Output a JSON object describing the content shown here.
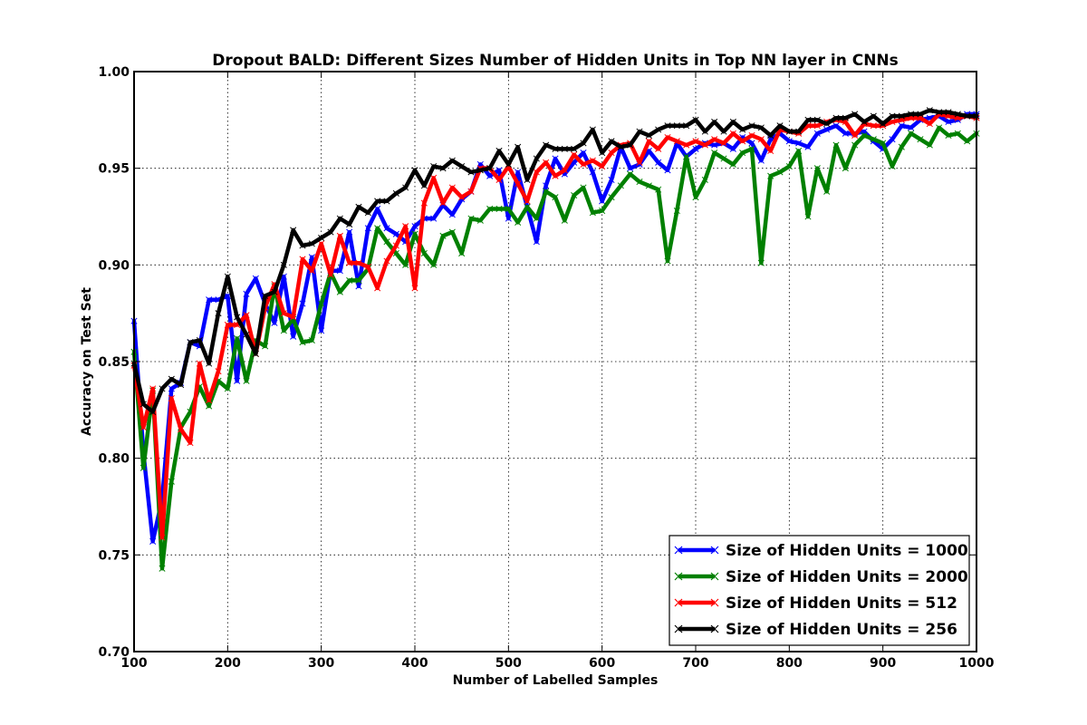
{
  "chart_data": {
    "type": "line",
    "title": "Dropout BALD: Different Sizes Number of Hidden Units in Top NN layer in CNNs",
    "xlabel": "Number of Labelled Samples",
    "ylabel": "Accuracy on Test Set",
    "xlim": [
      100,
      1000
    ],
    "ylim": [
      0.7,
      1.0
    ],
    "xticks": [
      "100",
      "200",
      "300",
      "400",
      "500",
      "600",
      "700",
      "800",
      "900",
      "1000"
    ],
    "yticks": [
      "0.70",
      "0.75",
      "0.80",
      "0.85",
      "0.90",
      "0.95",
      "1.00"
    ],
    "grid": true,
    "legend_position": "lower-right",
    "x": [
      100,
      110,
      120,
      130,
      140,
      150,
      160,
      170,
      180,
      190,
      200,
      210,
      220,
      230,
      240,
      250,
      260,
      270,
      280,
      290,
      300,
      310,
      320,
      330,
      340,
      350,
      360,
      370,
      380,
      390,
      400,
      410,
      420,
      430,
      440,
      450,
      460,
      470,
      480,
      490,
      500,
      510,
      520,
      530,
      540,
      550,
      560,
      570,
      580,
      590,
      600,
      610,
      620,
      630,
      640,
      650,
      660,
      670,
      680,
      690,
      700,
      710,
      720,
      730,
      740,
      750,
      760,
      770,
      780,
      790,
      800,
      810,
      820,
      830,
      840,
      850,
      860,
      870,
      880,
      890,
      900,
      910,
      920,
      930,
      940,
      950,
      960,
      970,
      980,
      990,
      1000
    ],
    "series": [
      {
        "name": "Size of Hidden Units = 1000",
        "color": "#0000ff",
        "values": [
          0.871,
          0.803,
          0.757,
          0.779,
          0.836,
          0.839,
          0.86,
          0.858,
          0.882,
          0.882,
          0.884,
          0.84,
          0.885,
          0.893,
          0.88,
          0.87,
          0.894,
          0.863,
          0.88,
          0.904,
          0.866,
          0.897,
          0.897,
          0.917,
          0.889,
          0.919,
          0.929,
          0.919,
          0.916,
          0.912,
          0.92,
          0.924,
          0.924,
          0.931,
          0.926,
          0.934,
          0.938,
          0.952,
          0.946,
          0.949,
          0.924,
          0.948,
          0.93,
          0.912,
          0.941,
          0.955,
          0.947,
          0.953,
          0.958,
          0.948,
          0.933,
          0.944,
          0.961,
          0.95,
          0.952,
          0.959,
          0.953,
          0.949,
          0.963,
          0.956,
          0.96,
          0.963,
          0.962,
          0.963,
          0.96,
          0.966,
          0.963,
          0.954,
          0.965,
          0.968,
          0.964,
          0.963,
          0.961,
          0.968,
          0.97,
          0.972,
          0.968,
          0.968,
          0.969,
          0.964,
          0.96,
          0.965,
          0.972,
          0.971,
          0.975,
          0.976,
          0.977,
          0.974,
          0.975,
          0.978,
          0.978
        ]
      },
      {
        "name": "Size of Hidden Units = 2000",
        "color": "#008000",
        "values": [
          0.855,
          0.795,
          0.835,
          0.743,
          0.788,
          0.816,
          0.824,
          0.837,
          0.827,
          0.84,
          0.836,
          0.862,
          0.84,
          0.861,
          0.858,
          0.889,
          0.866,
          0.872,
          0.86,
          0.861,
          0.88,
          0.896,
          0.886,
          0.892,
          0.892,
          0.898,
          0.919,
          0.912,
          0.906,
          0.9,
          0.916,
          0.906,
          0.9,
          0.915,
          0.917,
          0.906,
          0.924,
          0.923,
          0.929,
          0.929,
          0.929,
          0.922,
          0.93,
          0.924,
          0.938,
          0.935,
          0.923,
          0.936,
          0.94,
          0.927,
          0.928,
          0.935,
          0.941,
          0.947,
          0.943,
          0.941,
          0.939,
          0.902,
          0.928,
          0.956,
          0.935,
          0.944,
          0.958,
          0.955,
          0.952,
          0.958,
          0.96,
          0.901,
          0.946,
          0.948,
          0.951,
          0.959,
          0.925,
          0.95,
          0.938,
          0.962,
          0.95,
          0.962,
          0.967,
          0.965,
          0.963,
          0.951,
          0.961,
          0.968,
          0.965,
          0.962,
          0.971,
          0.967,
          0.968,
          0.964,
          0.968
        ]
      },
      {
        "name": "Size of Hidden Units = 512",
        "color": "#ff0000",
        "values": [
          0.848,
          0.816,
          0.836,
          0.759,
          0.831,
          0.815,
          0.808,
          0.849,
          0.83,
          0.845,
          0.869,
          0.869,
          0.874,
          0.854,
          0.878,
          0.89,
          0.875,
          0.873,
          0.903,
          0.897,
          0.911,
          0.895,
          0.915,
          0.901,
          0.901,
          0.899,
          0.888,
          0.902,
          0.91,
          0.92,
          0.888,
          0.932,
          0.945,
          0.932,
          0.94,
          0.935,
          0.938,
          0.95,
          0.95,
          0.944,
          0.951,
          0.942,
          0.933,
          0.948,
          0.953,
          0.946,
          0.949,
          0.957,
          0.952,
          0.954,
          0.951,
          0.958,
          0.962,
          0.963,
          0.953,
          0.964,
          0.96,
          0.966,
          0.964,
          0.962,
          0.964,
          0.962,
          0.965,
          0.963,
          0.968,
          0.964,
          0.967,
          0.965,
          0.959,
          0.97,
          0.969,
          0.968,
          0.972,
          0.972,
          0.974,
          0.975,
          0.974,
          0.967,
          0.973,
          0.972,
          0.972,
          0.974,
          0.975,
          0.976,
          0.976,
          0.973,
          0.978,
          0.977,
          0.976,
          0.977,
          0.976
        ]
      },
      {
        "name": "Size of Hidden Units = 256",
        "color": "#000000",
        "values": [
          0.849,
          0.828,
          0.824,
          0.836,
          0.841,
          0.838,
          0.86,
          0.861,
          0.849,
          0.875,
          0.894,
          0.873,
          0.864,
          0.854,
          0.884,
          0.886,
          0.9,
          0.918,
          0.91,
          0.911,
          0.914,
          0.917,
          0.924,
          0.921,
          0.93,
          0.927,
          0.933,
          0.933,
          0.937,
          0.94,
          0.949,
          0.941,
          0.951,
          0.95,
          0.954,
          0.951,
          0.948,
          0.949,
          0.95,
          0.959,
          0.952,
          0.961,
          0.944,
          0.955,
          0.962,
          0.96,
          0.96,
          0.96,
          0.963,
          0.97,
          0.958,
          0.964,
          0.961,
          0.962,
          0.969,
          0.967,
          0.97,
          0.972,
          0.972,
          0.972,
          0.975,
          0.969,
          0.974,
          0.969,
          0.974,
          0.97,
          0.972,
          0.971,
          0.967,
          0.972,
          0.969,
          0.969,
          0.975,
          0.975,
          0.973,
          0.976,
          0.976,
          0.978,
          0.974,
          0.977,
          0.973,
          0.977,
          0.977,
          0.978,
          0.978,
          0.98,
          0.979,
          0.979,
          0.978,
          0.977,
          0.977
        ]
      }
    ]
  }
}
